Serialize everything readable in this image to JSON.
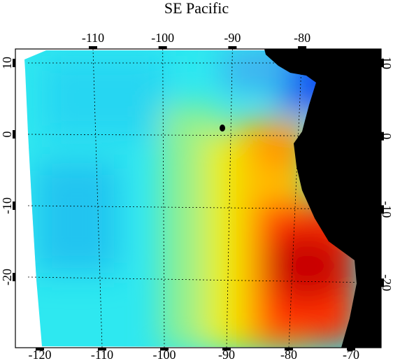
{
  "title": "SE Pacific",
  "axes": {
    "top": [
      -110,
      -100,
      -90,
      -80
    ],
    "bottom": [
      -120,
      -110,
      -100,
      -90,
      -80,
      -70
    ],
    "left": [
      10,
      0,
      -10,
      -20
    ],
    "right": [
      10,
      0,
      -10,
      -20
    ]
  }
}
